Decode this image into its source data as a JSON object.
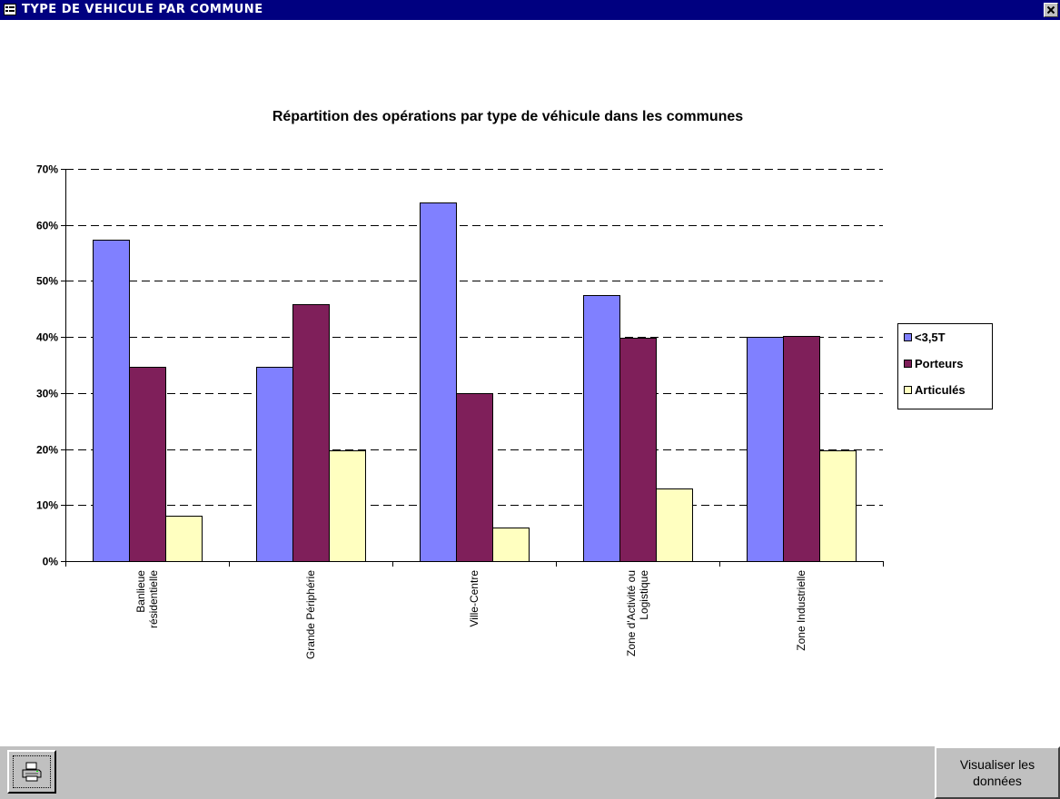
{
  "window": {
    "title": "TYPE DE VEHICULE PAR COMMUNE",
    "icon": "form-icon",
    "close_icon": "close-icon"
  },
  "chart_data": {
    "type": "bar",
    "title": "Répartition des opérations par type de véhicule dans les communes",
    "xlabel": "",
    "ylabel": "",
    "categories": [
      [
        "Banlieue",
        "résidentielle"
      ],
      [
        "Grande Périphérie"
      ],
      [
        "Ville-Centre"
      ],
      [
        "Zone d'Activité ou",
        "Logistique"
      ],
      [
        "Zone Industrielle"
      ]
    ],
    "series": [
      {
        "name": "<3,5T",
        "color": "#8080ff",
        "values": [
          57.3,
          34.7,
          64.0,
          47.5,
          40.0
        ]
      },
      {
        "name": "Porteurs",
        "color": "#7f1f5a",
        "values": [
          34.7,
          45.8,
          30.0,
          39.8,
          40.2
        ]
      },
      {
        "name": "Articulés",
        "color": "#ffffc0",
        "values": [
          8.1,
          19.8,
          6.0,
          12.9,
          19.8
        ]
      }
    ],
    "ylim": [
      0,
      70
    ],
    "yticks": [
      0,
      10,
      20,
      30,
      40,
      50,
      60,
      70
    ],
    "ytick_labels": [
      "0%",
      "10%",
      "20%",
      "30%",
      "40%",
      "50%",
      "60%",
      "70%"
    ],
    "grid": true,
    "grid_style": "dashed",
    "legend_position": "right"
  },
  "footer": {
    "print_icon": "printer-icon",
    "view_data_label": "Visualiser les données"
  }
}
